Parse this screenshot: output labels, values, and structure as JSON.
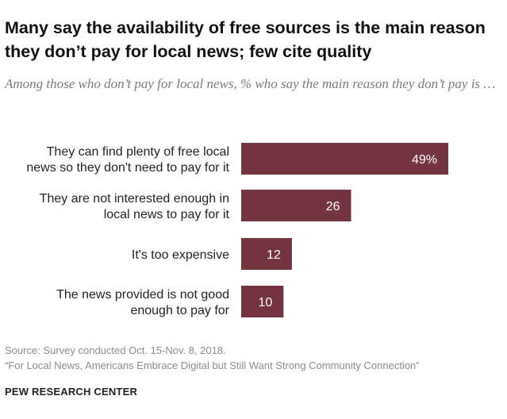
{
  "chart_data": {
    "type": "bar",
    "orientation": "horizontal",
    "title": "Many say the availability of free sources is the main reason they don’t pay for local news; few cite quality",
    "subtitle": "Among those who don’t pay for local news, % who say the main reason they don’t pay is …",
    "categories": [
      [
        "They can find plenty of free local",
        "news so they don't need to pay for it"
      ],
      [
        "They are not interested enough in",
        "local news to pay for it"
      ],
      [
        "It's too expensive"
      ],
      [
        "The news provided is not good",
        "enough to pay for"
      ]
    ],
    "values": [
      49,
      26,
      12,
      10
    ],
    "value_labels": [
      "49%",
      "26",
      "12",
      "10"
    ],
    "xlim": [
      0,
      100
    ],
    "grid": false,
    "bar_color": "#73333f"
  },
  "source": {
    "line1": "Source: Survey conducted Oct. 15-Nov. 8, 2018.",
    "line2": "“For Local News, Americans Embrace Digital but Still Want Strong Community Connection”"
  },
  "brand": "PEW RESEARCH CENTER"
}
